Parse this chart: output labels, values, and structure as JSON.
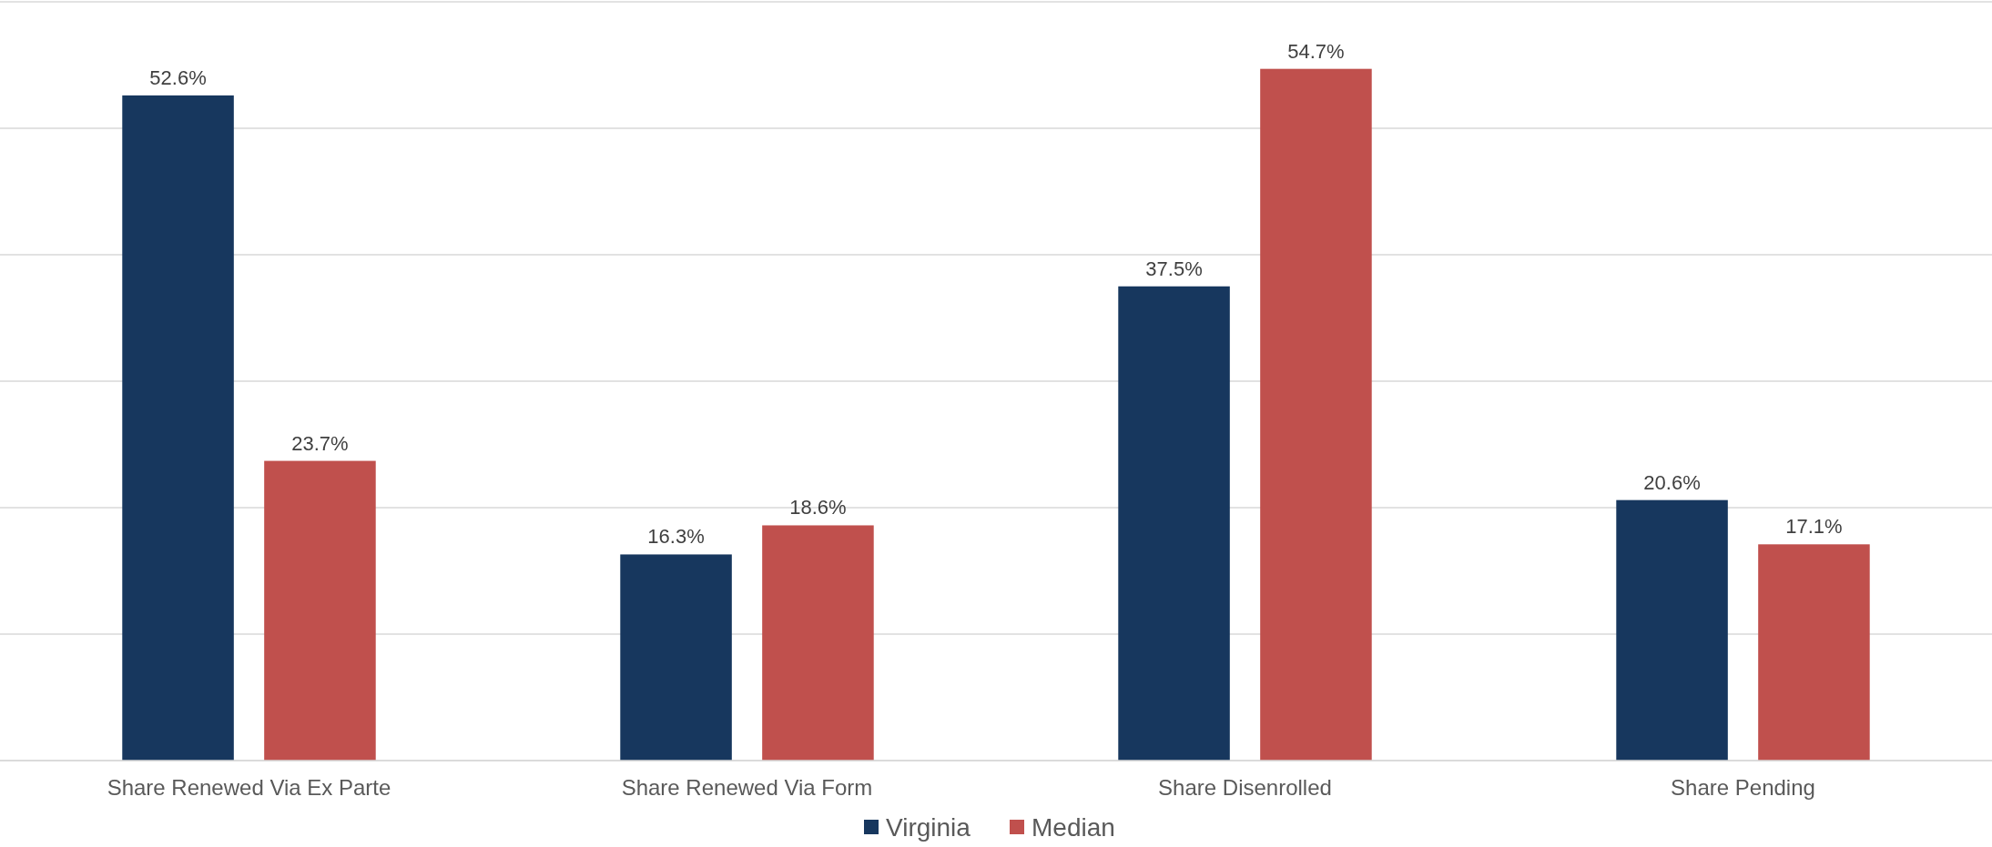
{
  "chart_data": {
    "type": "bar",
    "categories": [
      "Share Renewed Via Ex Parte",
      "Share Renewed Via Form",
      "Share Disenrolled",
      "Share Pending"
    ],
    "series": [
      {
        "name": "Virginia",
        "color": "#17375e",
        "values": [
          52.6,
          16.3,
          37.5,
          20.6
        ],
        "value_labels": [
          "52.6%",
          "16.3%",
          "37.5%",
          "20.6%"
        ]
      },
      {
        "name": "Median",
        "color": "#c0504d",
        "values": [
          23.7,
          18.6,
          54.7,
          17.1
        ],
        "value_labels": [
          "23.7%",
          "18.6%",
          "54.7%",
          "17.1%"
        ]
      }
    ],
    "ylim": [
      0,
      60
    ],
    "yticks": [
      {
        "value": 0,
        "label": null
      },
      {
        "value": 10,
        "label": null
      },
      {
        "value": 20,
        "label": null
      },
      {
        "value": 30,
        "label": null
      },
      {
        "value": 40,
        "label": null
      },
      {
        "value": 50,
        "label": null
      },
      {
        "value": 60,
        "label": null
      }
    ],
    "grid": true,
    "legend": "bottom",
    "tick_labels": "x"
  }
}
